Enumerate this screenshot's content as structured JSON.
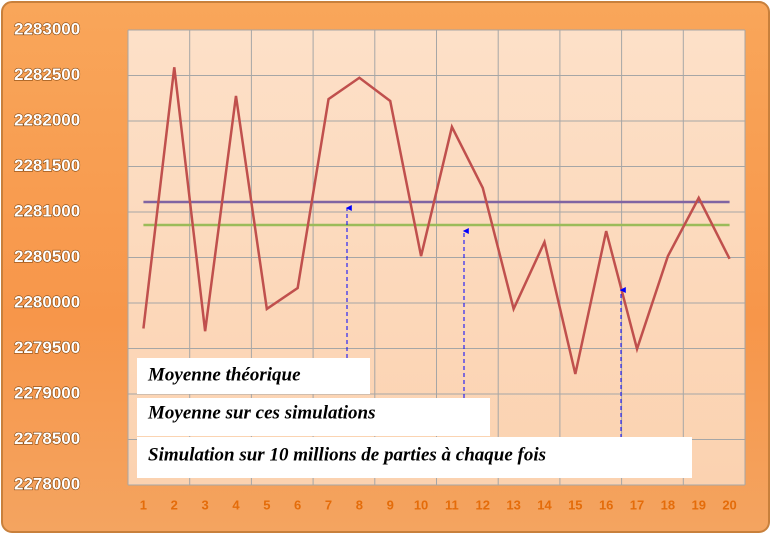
{
  "chart_data": {
    "type": "line",
    "categories": [
      "1",
      "2",
      "3",
      "4",
      "5",
      "6",
      "7",
      "8",
      "9",
      "10",
      "11",
      "12",
      "13",
      "14",
      "15",
      "16",
      "17",
      "18",
      "19",
      "20"
    ],
    "series": [
      {
        "color": "#c0504d",
        "values": [
          2279720,
          2282590,
          2279690,
          2282275,
          2279935,
          2280165,
          2282240,
          2282475,
          2282220,
          2280515,
          2281935,
          2281265,
          2279935,
          2280670,
          2279220,
          2280790,
          2279495,
          2280515,
          2281155,
          2280485
        ]
      }
    ],
    "hlines": [
      {
        "value": 2281110,
        "color": "#8064a2"
      },
      {
        "value": 2280857,
        "color": "#9bbb59"
      }
    ],
    "ylim": [
      2278000,
      2283000
    ],
    "yticks": [
      2278000,
      2278500,
      2279000,
      2279500,
      2280000,
      2280500,
      2281000,
      2281500,
      2282000,
      2282500,
      2283000
    ],
    "grid": true,
    "annotations": [
      "Moyenne théorique",
      "Moyenne sur ces simulations",
      "Simulation sur 10 millions de parties à chaque fois"
    ]
  }
}
